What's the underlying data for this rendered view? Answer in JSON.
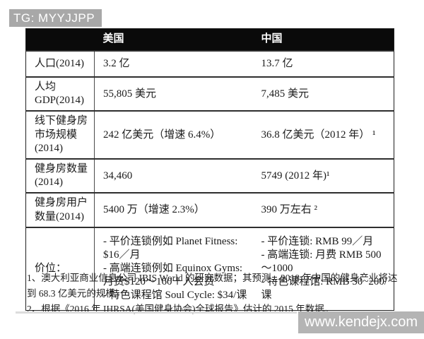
{
  "badge": {
    "text": "TG: MYYJJPP"
  },
  "watermark": {
    "text": "www.kendejx.com"
  },
  "colors": {
    "header_bg": "#0a0a0a",
    "border": "#2e2e2e",
    "badge_bg": "#a8a8a8",
    "badge_text": "#ffffff",
    "watermark_bg": "#b4b4b4",
    "watermark_text": "#ffffff",
    "text": "#1b1b1b"
  },
  "table": {
    "columns": [
      "",
      "美国",
      "中国"
    ],
    "rows": [
      {
        "label": "人口(2014)",
        "us": "3.2 亿",
        "cn": "13.7 亿"
      },
      {
        "label": "人均 GDP(2014)",
        "us": "55,805 美元",
        "cn": "7,485 美元"
      },
      {
        "label": "线下健身房市场规模(2014)",
        "us": "242 亿美元（增速 6.4%）",
        "cn": "36.8 亿美元（2012 年） ¹"
      },
      {
        "label": "健身房数量 (2014)",
        "us": "34,460",
        "cn": "5749 (2012 年)¹"
      },
      {
        "label": "健身房用户数量(2014)",
        "us": "5400 万（增速 2.3%）",
        "cn": "390 万左右 ²"
      },
      {
        "label": "价位：",
        "us": [
          "- 平价连锁例如 Planet Fitness: $16／月",
          "- 高端连锁例如 Equinox Gyms: 月费$120～160＋入会费",
          "- 特色课程馆 Soul Cycle: $34/课"
        ],
        "cn": [
          "- 平价连锁: RMB 99／月",
          "- 高端连锁: 月费 RMB 500～1000",
          "- 特色课程馆: RMB 50~200/课"
        ]
      }
    ]
  },
  "footnotes": [
    "1、澳大利亚商业信息公司 IBIS World 的研究数据；其预测，2018 年中国的健身产业将达到 68.3 亿美元的规模。",
    "2、根据《2016 年 IHRSA(美国健身协会)全球报告》估计的 2015 年数据。"
  ]
}
